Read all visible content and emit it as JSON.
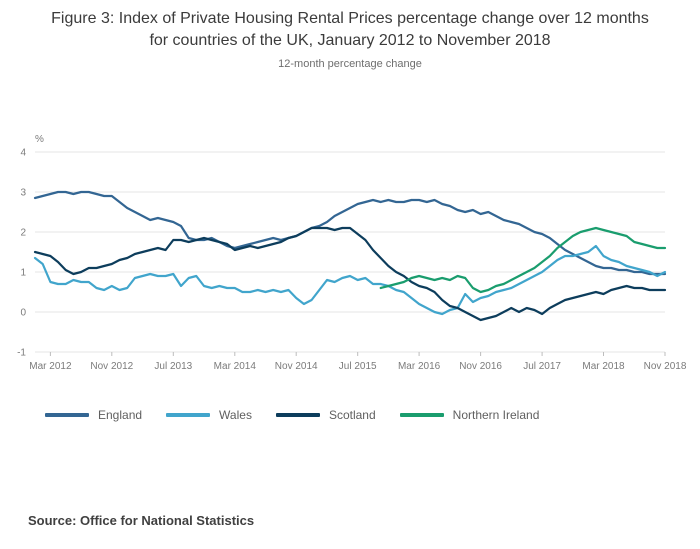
{
  "title": "Figure 3: Index of Private Housing Rental Prices percentage change over 12 months for countries of the UK, January 2012 to November 2018",
  "subtitle": "12-month percentage change",
  "source": "Source: Office for National Statistics",
  "chart_data": {
    "type": "line",
    "y_unit": "%",
    "ylim": [
      -1,
      4
    ],
    "y_ticks": [
      -1,
      0,
      1,
      2,
      3,
      4
    ],
    "grid": "horizontal",
    "legend_position": "bottom",
    "x_start": "Jan 2012",
    "x_end": "Nov 2018",
    "x_freq": "monthly",
    "x_count": 83,
    "x_ticks": [
      {
        "index": 2,
        "label": "Mar 2012"
      },
      {
        "index": 10,
        "label": "Nov 2012"
      },
      {
        "index": 18,
        "label": "Jul 2013"
      },
      {
        "index": 26,
        "label": "Mar 2014"
      },
      {
        "index": 34,
        "label": "Nov 2014"
      },
      {
        "index": 42,
        "label": "Jul 2015"
      },
      {
        "index": 50,
        "label": "Mar 2016"
      },
      {
        "index": 58,
        "label": "Nov 2016"
      },
      {
        "index": 66,
        "label": "Jul 2017"
      },
      {
        "index": 74,
        "label": "Mar 2018"
      },
      {
        "index": 82,
        "label": "Nov 2018"
      }
    ],
    "series": [
      {
        "name": "England",
        "color": "#336693",
        "values": [
          2.85,
          2.9,
          2.95,
          3.0,
          3.0,
          2.95,
          3.0,
          3.0,
          2.95,
          2.9,
          2.9,
          2.75,
          2.6,
          2.5,
          2.4,
          2.3,
          2.35,
          2.3,
          2.25,
          2.15,
          1.85,
          1.8,
          1.8,
          1.85,
          1.75,
          1.65,
          1.6,
          1.65,
          1.7,
          1.75,
          1.8,
          1.85,
          1.8,
          1.85,
          1.9,
          2.0,
          2.1,
          2.15,
          2.25,
          2.4,
          2.5,
          2.6,
          2.7,
          2.75,
          2.8,
          2.75,
          2.8,
          2.75,
          2.75,
          2.8,
          2.8,
          2.75,
          2.8,
          2.7,
          2.65,
          2.55,
          2.5,
          2.55,
          2.45,
          2.5,
          2.4,
          2.3,
          2.25,
          2.2,
          2.1,
          2.0,
          1.95,
          1.85,
          1.7,
          1.55,
          1.45,
          1.35,
          1.25,
          1.15,
          1.1,
          1.1,
          1.05,
          1.05,
          1.0,
          1.0,
          0.95,
          0.95,
          0.95
        ]
      },
      {
        "name": "Wales",
        "color": "#41a5cc",
        "values": [
          1.35,
          1.2,
          0.75,
          0.7,
          0.7,
          0.8,
          0.75,
          0.75,
          0.6,
          0.55,
          0.65,
          0.55,
          0.6,
          0.85,
          0.9,
          0.95,
          0.9,
          0.9,
          0.95,
          0.65,
          0.85,
          0.9,
          0.65,
          0.6,
          0.65,
          0.6,
          0.6,
          0.5,
          0.5,
          0.55,
          0.5,
          0.55,
          0.5,
          0.55,
          0.35,
          0.2,
          0.3,
          0.55,
          0.8,
          0.75,
          0.85,
          0.9,
          0.8,
          0.85,
          0.7,
          0.7,
          0.65,
          0.55,
          0.5,
          0.35,
          0.2,
          0.1,
          0.0,
          -0.05,
          0.05,
          0.1,
          0.45,
          0.25,
          0.35,
          0.4,
          0.5,
          0.55,
          0.6,
          0.7,
          0.8,
          0.9,
          1.0,
          1.15,
          1.3,
          1.4,
          1.4,
          1.45,
          1.5,
          1.65,
          1.4,
          1.3,
          1.25,
          1.15,
          1.1,
          1.05,
          1.0,
          0.9,
          1.0
        ]
      },
      {
        "name": "Scotland",
        "color": "#0d3d5c",
        "values": [
          1.5,
          1.45,
          1.4,
          1.25,
          1.05,
          0.95,
          1.0,
          1.1,
          1.1,
          1.15,
          1.2,
          1.3,
          1.35,
          1.45,
          1.5,
          1.55,
          1.6,
          1.55,
          1.8,
          1.8,
          1.75,
          1.8,
          1.85,
          1.8,
          1.75,
          1.7,
          1.55,
          1.6,
          1.65,
          1.6,
          1.65,
          1.7,
          1.75,
          1.85,
          1.9,
          2.0,
          2.1,
          2.1,
          2.1,
          2.05,
          2.1,
          2.1,
          1.95,
          1.8,
          1.55,
          1.35,
          1.15,
          1.0,
          0.9,
          0.75,
          0.65,
          0.6,
          0.5,
          0.3,
          0.15,
          0.1,
          0.0,
          -0.1,
          -0.2,
          -0.15,
          -0.1,
          0.0,
          0.1,
          0.0,
          0.1,
          0.05,
          -0.05,
          0.1,
          0.2,
          0.3,
          0.35,
          0.4,
          0.45,
          0.5,
          0.45,
          0.55,
          0.6,
          0.65,
          0.6,
          0.6,
          0.55,
          0.55,
          0.55
        ]
      },
      {
        "name": "Northern Ireland",
        "color": "#1a9d6e",
        "values": [
          null,
          null,
          null,
          null,
          null,
          null,
          null,
          null,
          null,
          null,
          null,
          null,
          null,
          null,
          null,
          null,
          null,
          null,
          null,
          null,
          null,
          null,
          null,
          null,
          null,
          null,
          null,
          null,
          null,
          null,
          null,
          null,
          null,
          null,
          null,
          null,
          null,
          null,
          null,
          null,
          null,
          null,
          null,
          null,
          null,
          0.6,
          0.65,
          0.7,
          0.75,
          0.85,
          0.9,
          0.85,
          0.8,
          0.85,
          0.8,
          0.9,
          0.85,
          0.6,
          0.5,
          0.55,
          0.65,
          0.7,
          0.8,
          0.9,
          1.0,
          1.1,
          1.25,
          1.4,
          1.6,
          1.75,
          1.9,
          2.0,
          2.05,
          2.1,
          2.05,
          2.0,
          1.95,
          1.9,
          1.75,
          1.7,
          1.65,
          1.6,
          1.6
        ]
      }
    ]
  }
}
